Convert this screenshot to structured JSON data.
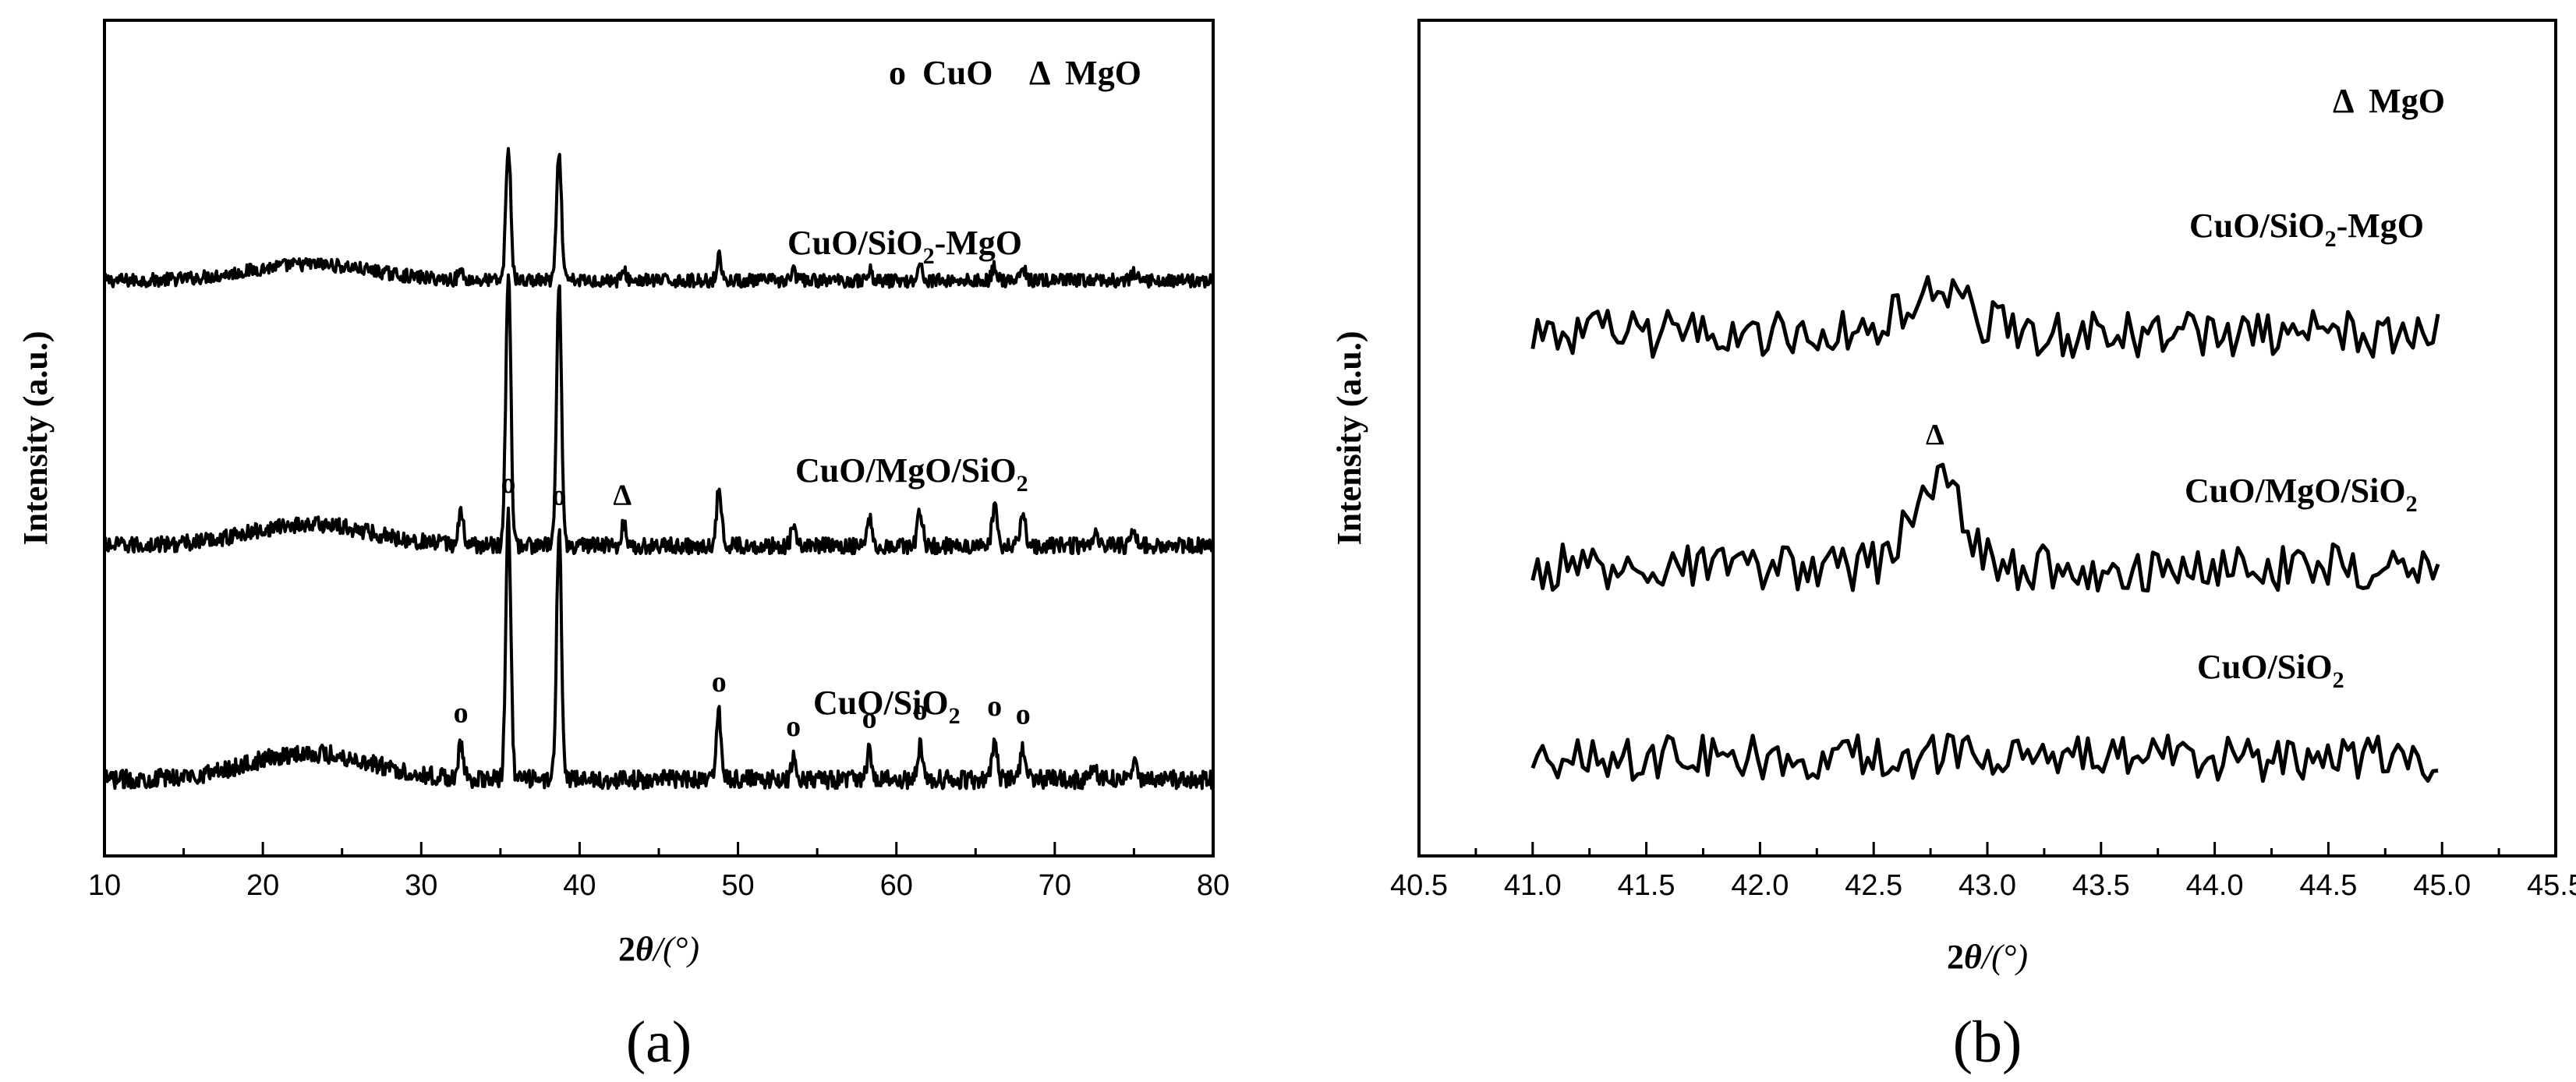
{
  "chart_data": [
    {
      "panel": "(a)",
      "type": "line",
      "xlabel_prefix": "2",
      "xlabel_symbol": "θ",
      "xlabel_unit": "/(°)",
      "ylabel": "Intensity (a.u.)",
      "xlim": [
        10,
        80
      ],
      "xticks": [
        "10",
        "20",
        "30",
        "40",
        "50",
        "60",
        "70",
        "80"
      ],
      "legend": [
        {
          "symbol": "o",
          "name": "CuO"
        },
        {
          "symbol": "Δ",
          "name": "MgO"
        }
      ],
      "series": [
        {
          "name": "CuO/SiO₂-MgO",
          "label_main": "CuO/SiO",
          "label_sub": "2",
          "label_tail": "-MgO",
          "baseline": 0.0,
          "hump": {
            "center": 23,
            "width": 5.5,
            "height": 0.55
          },
          "peaks": [
            {
              "x": 32.5,
              "h": 0.3
            },
            {
              "x": 35.5,
              "h": 4.5
            },
            {
              "x": 38.7,
              "h": 4.2
            },
            {
              "x": 42.8,
              "h": 0.3
            },
            {
              "x": 48.8,
              "h": 0.8
            },
            {
              "x": 53.5,
              "h": 0.3
            },
            {
              "x": 58.3,
              "h": 0.35
            },
            {
              "x": 61.5,
              "h": 0.5
            },
            {
              "x": 66.2,
              "h": 0.5
            },
            {
              "x": 68.0,
              "h": 0.4
            },
            {
              "x": 75.0,
              "h": 0.25
            }
          ]
        },
        {
          "name": "CuO/MgO/SiO₂",
          "label_main": "CuO/MgO/SiO",
          "label_sub": "2",
          "label_tail": "",
          "baseline": 0.0,
          "hump": {
            "center": 23,
            "width": 5.5,
            "height": 0.6
          },
          "peaks": [
            {
              "x": 32.5,
              "h": 0.9
            },
            {
              "x": 35.5,
              "h": 7.7
            },
            {
              "x": 38.7,
              "h": 7.3
            },
            {
              "x": 42.8,
              "h": 0.6
            },
            {
              "x": 48.8,
              "h": 1.6
            },
            {
              "x": 53.5,
              "h": 0.5
            },
            {
              "x": 58.3,
              "h": 0.8
            },
            {
              "x": 61.5,
              "h": 1.0
            },
            {
              "x": 66.2,
              "h": 1.1
            },
            {
              "x": 68.0,
              "h": 1.0
            },
            {
              "x": 72.5,
              "h": 0.3
            },
            {
              "x": 75.0,
              "h": 0.5
            }
          ]
        },
        {
          "name": "CuO/SiO₂",
          "label_main": "CuO/SiO",
          "label_sub": "2",
          "label_tail": "",
          "baseline": 0.0,
          "hump": {
            "center": 23,
            "width": 5.5,
            "height": 0.65
          },
          "peaks": [
            {
              "x": 32.5,
              "h": 0.8
            },
            {
              "x": 35.5,
              "h": 6.5
            },
            {
              "x": 38.7,
              "h": 6.2
            },
            {
              "x": 48.8,
              "h": 1.6
            },
            {
              "x": 53.5,
              "h": 0.5
            },
            {
              "x": 58.3,
              "h": 0.7
            },
            {
              "x": 61.5,
              "h": 0.9
            },
            {
              "x": 66.2,
              "h": 1.0
            },
            {
              "x": 68.0,
              "h": 0.8
            },
            {
              "x": 72.5,
              "h": 0.3
            },
            {
              "x": 75.0,
              "h": 0.5
            }
          ]
        }
      ],
      "markers": [
        {
          "symbol": "Δ",
          "x": 42.7,
          "series": 1
        },
        {
          "symbol": "o",
          "x": 35.5,
          "series": 2
        },
        {
          "symbol": "o",
          "x": 38.7,
          "series": 2
        },
        {
          "symbol": "o",
          "x": 32.5,
          "series": 2
        },
        {
          "symbol": "o",
          "x": 48.8,
          "series": 2
        },
        {
          "symbol": "o",
          "x": 53.5,
          "series": 2
        },
        {
          "symbol": "o",
          "x": 58.3,
          "series": 2
        },
        {
          "symbol": "o",
          "x": 61.5,
          "series": 2
        },
        {
          "symbol": "o",
          "x": 66.2,
          "series": 2
        },
        {
          "symbol": "o",
          "x": 68.0,
          "series": 2
        }
      ]
    },
    {
      "panel": "(b)",
      "type": "line",
      "xlabel_prefix": "2",
      "xlabel_symbol": "θ",
      "xlabel_unit": "/(°)",
      "ylabel": "Intensity (a.u.)",
      "xlim": [
        40.5,
        45.5
      ],
      "xticks": [
        "40.5",
        "41.0",
        "41.5",
        "42.0",
        "42.5",
        "43.0",
        "43.5",
        "44.0",
        "44.5",
        "45.0",
        "45.5"
      ],
      "data_range": [
        41.0,
        45.0
      ],
      "legend": [
        {
          "symbol": "Δ",
          "name": "MgO"
        }
      ],
      "series": [
        {
          "name": "CuO/SiO₂-MgO",
          "label_main": "CuO/SiO",
          "label_sub": "2",
          "label_tail": "-MgO",
          "peak": {
            "x": 42.78,
            "h": 1.2,
            "width": 0.12
          }
        },
        {
          "name": "CuO/MgO/SiO₂",
          "label_main": "CuO/MgO/SiO",
          "label_sub": "2",
          "label_tail": "",
          "peak": {
            "x": 42.77,
            "h": 2.4,
            "width": 0.1
          }
        },
        {
          "name": "CuO/SiO₂",
          "label_main": "CuO/SiO",
          "label_sub": "2",
          "label_tail": "",
          "peak": {
            "x": 42.8,
            "h": 0.0,
            "width": 0.1
          }
        }
      ],
      "markers": [
        {
          "symbol": "Δ",
          "x": 42.77,
          "series": 1
        }
      ]
    }
  ]
}
